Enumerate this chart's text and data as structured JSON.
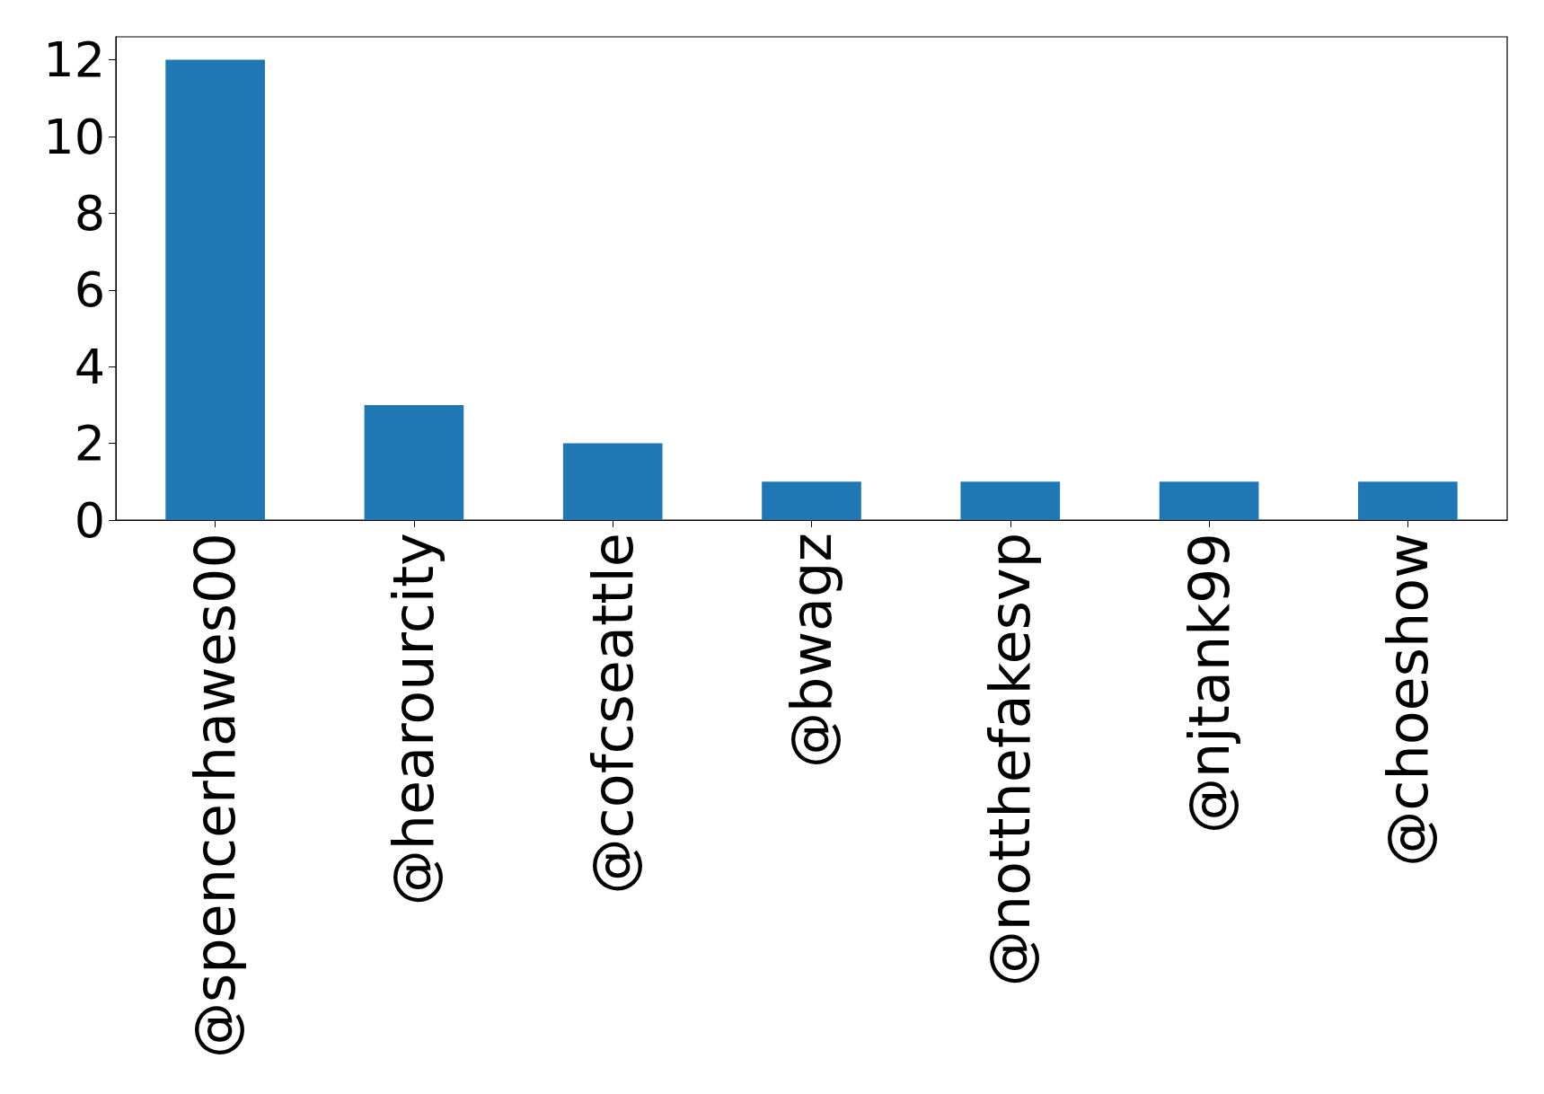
{
  "chart_data": {
    "type": "bar",
    "categories": [
      "@spencerhawes00",
      "@hearourcity",
      "@cofcseattle",
      "@bwagz",
      "@notthefakesvp",
      "@njtank99",
      "@choeshow"
    ],
    "values": [
      12,
      3,
      2,
      1,
      1,
      1,
      1
    ],
    "color": "#1f77b4",
    "ylim": [
      0,
      12.6
    ],
    "yticks": [
      0,
      2,
      4,
      6,
      8,
      10,
      12
    ],
    "grid": false
  }
}
